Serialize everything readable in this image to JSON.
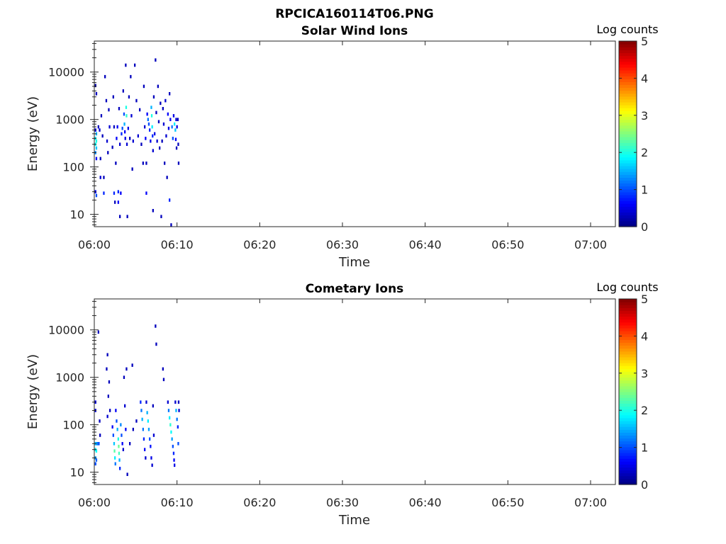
{
  "figure_title": "RPCICA160114T06.PNG",
  "colors": {
    "frame": "#262626",
    "background": "#ffffff"
  },
  "chart_data": [
    {
      "type": "heatmap",
      "title": "Solar Wind Ions",
      "xlabel": "Time",
      "ylabel": "Energy (eV)",
      "y_scale": "log",
      "xlim": [
        "06:00",
        "07:03"
      ],
      "ylim": [
        5.5,
        45000
      ],
      "x_ticks": [
        "06:00",
        "06:10",
        "06:20",
        "06:30",
        "06:40",
        "06:50",
        "07:00"
      ],
      "y_ticks": [
        {
          "value": 10,
          "label": "10"
        },
        {
          "value": 100,
          "label": "100"
        },
        {
          "value": 1000,
          "label": "1000"
        },
        {
          "value": 10000,
          "label": "10000"
        }
      ],
      "colorbar": {
        "label": "Log counts",
        "range": [
          0,
          5
        ],
        "ticks": [
          "0",
          "1",
          "2",
          "3",
          "4",
          "5"
        ],
        "colormap": "jet"
      },
      "cells": [
        {
          "t": 0.05,
          "e": 600,
          "v": 0.6
        },
        {
          "t": 0.05,
          "e": 400,
          "v": 1.8
        },
        {
          "t": 0.05,
          "e": 300,
          "v": 1.9
        },
        {
          "t": 0.05,
          "e": 200,
          "v": 1.3
        },
        {
          "t": 0.15,
          "e": 500,
          "v": 1.5
        },
        {
          "t": 0.15,
          "e": 350,
          "v": 2.0
        },
        {
          "t": 0.15,
          "e": 250,
          "v": 1.6
        },
        {
          "t": 0.15,
          "e": 150,
          "v": 0.6
        },
        {
          "t": 0.05,
          "e": 30,
          "v": 0.6
        },
        {
          "t": 0.15,
          "e": 25,
          "v": 1.0
        },
        {
          "t": 0.15,
          "e": 3500,
          "v": 0.3
        },
        {
          "t": 0.05,
          "e": 5200,
          "v": 0.2
        },
        {
          "t": 0.4,
          "e": 700,
          "v": 0.3
        },
        {
          "t": 0.55,
          "e": 600,
          "v": 0.4
        },
        {
          "t": 0.65,
          "e": 150,
          "v": 0.3
        },
        {
          "t": 0.65,
          "e": 60,
          "v": 0.4
        },
        {
          "t": 0.75,
          "e": 1200,
          "v": 0.3
        },
        {
          "t": 0.9,
          "e": 450,
          "v": 0.3
        },
        {
          "t": 1.05,
          "e": 60,
          "v": 0.3
        },
        {
          "t": 1.05,
          "e": 28,
          "v": 0.8
        },
        {
          "t": 1.2,
          "e": 8000,
          "v": 0.3
        },
        {
          "t": 1.35,
          "e": 2500,
          "v": 0.3
        },
        {
          "t": 1.45,
          "e": 350,
          "v": 0.4
        },
        {
          "t": 1.55,
          "e": 200,
          "v": 0.3
        },
        {
          "t": 1.65,
          "e": 1600,
          "v": 0.3
        },
        {
          "t": 1.75,
          "e": 700,
          "v": 0.4
        },
        {
          "t": 2.1,
          "e": 260,
          "v": 0.3
        },
        {
          "t": 2.2,
          "e": 3000,
          "v": 0.3
        },
        {
          "t": 2.3,
          "e": 700,
          "v": 0.3
        },
        {
          "t": 2.3,
          "e": 28,
          "v": 0.8
        },
        {
          "t": 2.4,
          "e": 18,
          "v": 0.3
        },
        {
          "t": 2.5,
          "e": 120,
          "v": 0.3
        },
        {
          "t": 2.6,
          "e": 400,
          "v": 0.6
        },
        {
          "t": 2.7,
          "e": 700,
          "v": 0.6
        },
        {
          "t": 2.8,
          "e": 30,
          "v": 0.8
        },
        {
          "t": 2.8,
          "e": 18,
          "v": 0.6
        },
        {
          "t": 2.9,
          "e": 1700,
          "v": 0.3
        },
        {
          "t": 3.0,
          "e": 300,
          "v": 0.4
        },
        {
          "t": 3.0,
          "e": 9,
          "v": 0.3
        },
        {
          "t": 3.1,
          "e": 28,
          "v": 0.6
        },
        {
          "t": 3.2,
          "e": 500,
          "v": 0.8
        },
        {
          "t": 3.3,
          "e": 650,
          "v": 1.0
        },
        {
          "t": 3.4,
          "e": 4000,
          "v": 0.3
        },
        {
          "t": 3.5,
          "e": 1300,
          "v": 1.0
        },
        {
          "t": 3.55,
          "e": 800,
          "v": 1.5
        },
        {
          "t": 3.6,
          "e": 550,
          "v": 0.6
        },
        {
          "t": 3.65,
          "e": 400,
          "v": 0.5
        },
        {
          "t": 3.7,
          "e": 14000,
          "v": 0.3
        },
        {
          "t": 3.75,
          "e": 1800,
          "v": 2.0
        },
        {
          "t": 3.8,
          "e": 1200,
          "v": 2.1
        },
        {
          "t": 3.85,
          "e": 300,
          "v": 0.4
        },
        {
          "t": 3.9,
          "e": 9,
          "v": 0.3
        },
        {
          "t": 4.0,
          "e": 650,
          "v": 0.5
        },
        {
          "t": 4.1,
          "e": 3000,
          "v": 0.3
        },
        {
          "t": 4.2,
          "e": 400,
          "v": 0.3
        },
        {
          "t": 4.3,
          "e": 8000,
          "v": 0.3
        },
        {
          "t": 4.4,
          "e": 1200,
          "v": 0.4
        },
        {
          "t": 4.5,
          "e": 90,
          "v": 0.3
        },
        {
          "t": 4.6,
          "e": 350,
          "v": 0.4
        },
        {
          "t": 4.8,
          "e": 14000,
          "v": 0.3
        },
        {
          "t": 5.0,
          "e": 2500,
          "v": 0.3
        },
        {
          "t": 5.2,
          "e": 450,
          "v": 0.4
        },
        {
          "t": 5.4,
          "e": 1600,
          "v": 0.3
        },
        {
          "t": 5.6,
          "e": 300,
          "v": 0.3
        },
        {
          "t": 5.8,
          "e": 120,
          "v": 0.3
        },
        {
          "t": 5.9,
          "e": 5000,
          "v": 0.3
        },
        {
          "t": 6.0,
          "e": 700,
          "v": 0.4
        },
        {
          "t": 6.1,
          "e": 400,
          "v": 0.6
        },
        {
          "t": 6.2,
          "e": 120,
          "v": 0.3
        },
        {
          "t": 6.2,
          "e": 28,
          "v": 0.6
        },
        {
          "t": 6.3,
          "e": 1300,
          "v": 0.6
        },
        {
          "t": 6.4,
          "e": 1000,
          "v": 1.2
        },
        {
          "t": 6.5,
          "e": 800,
          "v": 1.0
        },
        {
          "t": 6.6,
          "e": 600,
          "v": 0.8
        },
        {
          "t": 6.7,
          "e": 350,
          "v": 0.5
        },
        {
          "t": 6.8,
          "e": 1800,
          "v": 1.5
        },
        {
          "t": 6.85,
          "e": 1200,
          "v": 2.0
        },
        {
          "t": 6.9,
          "e": 700,
          "v": 1.8
        },
        {
          "t": 6.95,
          "e": 450,
          "v": 0.8
        },
        {
          "t": 7.0,
          "e": 220,
          "v": 0.4
        },
        {
          "t": 7.0,
          "e": 12,
          "v": 0.3
        },
        {
          "t": 7.1,
          "e": 3000,
          "v": 0.3
        },
        {
          "t": 7.2,
          "e": 500,
          "v": 0.5
        },
        {
          "t": 7.3,
          "e": 18000,
          "v": 0.3
        },
        {
          "t": 7.4,
          "e": 1400,
          "v": 0.3
        },
        {
          "t": 7.5,
          "e": 350,
          "v": 0.4
        },
        {
          "t": 7.6,
          "e": 5000,
          "v": 0.3
        },
        {
          "t": 7.7,
          "e": 900,
          "v": 0.3
        },
        {
          "t": 7.8,
          "e": 250,
          "v": 0.3
        },
        {
          "t": 7.9,
          "e": 2200,
          "v": 0.3
        },
        {
          "t": 8.0,
          "e": 9,
          "v": 0.3
        },
        {
          "t": 8.1,
          "e": 350,
          "v": 0.3
        },
        {
          "t": 8.2,
          "e": 1700,
          "v": 0.3
        },
        {
          "t": 8.3,
          "e": 800,
          "v": 0.4
        },
        {
          "t": 8.4,
          "e": 120,
          "v": 0.3
        },
        {
          "t": 8.5,
          "e": 2500,
          "v": 0.4
        },
        {
          "t": 8.6,
          "e": 450,
          "v": 0.4
        },
        {
          "t": 8.7,
          "e": 60,
          "v": 0.3
        },
        {
          "t": 8.8,
          "e": 1300,
          "v": 0.6
        },
        {
          "t": 8.9,
          "e": 650,
          "v": 0.5
        },
        {
          "t": 9.0,
          "e": 3500,
          "v": 0.3
        },
        {
          "t": 9.0,
          "e": 20,
          "v": 0.8
        },
        {
          "t": 9.1,
          "e": 1000,
          "v": 0.6
        },
        {
          "t": 9.2,
          "e": 6,
          "v": 0.3
        },
        {
          "t": 9.3,
          "e": 700,
          "v": 1.2
        },
        {
          "t": 9.4,
          "e": 400,
          "v": 1.0
        },
        {
          "t": 9.5,
          "e": 1200,
          "v": 0.5
        },
        {
          "t": 9.6,
          "e": 800,
          "v": 1.8
        },
        {
          "t": 9.7,
          "e": 600,
          "v": 1.6
        },
        {
          "t": 9.75,
          "e": 380,
          "v": 0.6
        },
        {
          "t": 9.8,
          "e": 1000,
          "v": 0.4
        },
        {
          "t": 9.85,
          "e": 250,
          "v": 0.3
        },
        {
          "t": 9.9,
          "e": 700,
          "v": 0.5
        },
        {
          "t": 10.0,
          "e": 1000,
          "v": 0.3
        },
        {
          "t": 10.05,
          "e": 300,
          "v": 0.3
        },
        {
          "t": 10.1,
          "e": 120,
          "v": 0.3
        }
      ]
    },
    {
      "type": "heatmap",
      "title": "Cometary Ions",
      "xlabel": "Time",
      "ylabel": "Energy (eV)",
      "y_scale": "log",
      "xlim": [
        "06:00",
        "07:03"
      ],
      "ylim": [
        5.5,
        45000
      ],
      "x_ticks": [
        "06:00",
        "06:10",
        "06:20",
        "06:30",
        "06:40",
        "06:50",
        "07:00"
      ],
      "y_ticks": [
        {
          "value": 10,
          "label": "10"
        },
        {
          "value": 100,
          "label": "100"
        },
        {
          "value": 1000,
          "label": "1000"
        },
        {
          "value": 10000,
          "label": "10000"
        }
      ],
      "colorbar": {
        "label": "Log counts",
        "range": [
          0,
          5
        ],
        "ticks": [
          "0",
          "1",
          "2",
          "3",
          "4",
          "5"
        ],
        "colormap": "jet"
      },
      "cells": [
        {
          "t": 0.05,
          "e": 300,
          "v": 0.6
        },
        {
          "t": 0.05,
          "e": 200,
          "v": 0.4
        },
        {
          "t": 0.05,
          "e": 40,
          "v": 1.5
        },
        {
          "t": 0.05,
          "e": 30,
          "v": 1.8
        },
        {
          "t": 0.05,
          "e": 20,
          "v": 1.4
        },
        {
          "t": 0.05,
          "e": 15,
          "v": 1.0
        },
        {
          "t": 0.15,
          "e": 40,
          "v": 1.6
        },
        {
          "t": 0.15,
          "e": 28,
          "v": 1.9
        },
        {
          "t": 0.15,
          "e": 18,
          "v": 1.1
        },
        {
          "t": 0.25,
          "e": 40,
          "v": 1.3
        },
        {
          "t": 0.35,
          "e": 40,
          "v": 1.2
        },
        {
          "t": 0.45,
          "e": 40,
          "v": 1.0
        },
        {
          "t": 0.55,
          "e": 120,
          "v": 0.3
        },
        {
          "t": 0.4,
          "e": 9000,
          "v": 0.3
        },
        {
          "t": 0.6,
          "e": 60,
          "v": 0.3
        },
        {
          "t": 1.4,
          "e": 1500,
          "v": 0.3
        },
        {
          "t": 1.5,
          "e": 3000,
          "v": 0.3
        },
        {
          "t": 1.6,
          "e": 400,
          "v": 0.3
        },
        {
          "t": 1.7,
          "e": 800,
          "v": 0.3
        },
        {
          "t": 1.8,
          "e": 200,
          "v": 0.3
        },
        {
          "t": 1.5,
          "e": 150,
          "v": 0.4
        },
        {
          "t": 2.1,
          "e": 90,
          "v": 0.6
        },
        {
          "t": 2.2,
          "e": 60,
          "v": 1.0
        },
        {
          "t": 2.3,
          "e": 40,
          "v": 1.6
        },
        {
          "t": 2.35,
          "e": 28,
          "v": 2.3
        },
        {
          "t": 2.4,
          "e": 20,
          "v": 1.8
        },
        {
          "t": 2.45,
          "e": 15,
          "v": 1.2
        },
        {
          "t": 2.5,
          "e": 200,
          "v": 0.6
        },
        {
          "t": 2.6,
          "e": 120,
          "v": 1.0
        },
        {
          "t": 2.7,
          "e": 80,
          "v": 1.5
        },
        {
          "t": 2.8,
          "e": 50,
          "v": 2.0
        },
        {
          "t": 2.85,
          "e": 35,
          "v": 2.4
        },
        {
          "t": 2.9,
          "e": 25,
          "v": 2.2
        },
        {
          "t": 2.95,
          "e": 18,
          "v": 1.5
        },
        {
          "t": 3.0,
          "e": 12,
          "v": 0.8
        },
        {
          "t": 3.1,
          "e": 100,
          "v": 1.3
        },
        {
          "t": 3.2,
          "e": 60,
          "v": 1.0
        },
        {
          "t": 3.3,
          "e": 40,
          "v": 0.6
        },
        {
          "t": 3.4,
          "e": 30,
          "v": 0.4
        },
        {
          "t": 3.5,
          "e": 1000,
          "v": 0.3
        },
        {
          "t": 3.6,
          "e": 250,
          "v": 0.4
        },
        {
          "t": 3.7,
          "e": 80,
          "v": 0.6
        },
        {
          "t": 3.8,
          "e": 1500,
          "v": 0.3
        },
        {
          "t": 3.9,
          "e": 9,
          "v": 0.3
        },
        {
          "t": 4.2,
          "e": 40,
          "v": 0.3
        },
        {
          "t": 4.5,
          "e": 1800,
          "v": 0.3
        },
        {
          "t": 4.6,
          "e": 80,
          "v": 0.3
        },
        {
          "t": 5.0,
          "e": 120,
          "v": 0.3
        },
        {
          "t": 5.5,
          "e": 300,
          "v": 0.8
        },
        {
          "t": 5.6,
          "e": 200,
          "v": 1.2
        },
        {
          "t": 5.7,
          "e": 130,
          "v": 1.5
        },
        {
          "t": 5.8,
          "e": 80,
          "v": 1.2
        },
        {
          "t": 5.9,
          "e": 50,
          "v": 0.8
        },
        {
          "t": 6.0,
          "e": 30,
          "v": 0.6
        },
        {
          "t": 6.1,
          "e": 20,
          "v": 0.4
        },
        {
          "t": 6.2,
          "e": 300,
          "v": 0.4
        },
        {
          "t": 6.3,
          "e": 180,
          "v": 1.5
        },
        {
          "t": 6.4,
          "e": 120,
          "v": 1.8
        },
        {
          "t": 6.5,
          "e": 80,
          "v": 1.4
        },
        {
          "t": 6.6,
          "e": 50,
          "v": 1.0
        },
        {
          "t": 6.7,
          "e": 35,
          "v": 0.7
        },
        {
          "t": 6.8,
          "e": 20,
          "v": 0.5
        },
        {
          "t": 6.9,
          "e": 14,
          "v": 0.4
        },
        {
          "t": 7.0,
          "e": 250,
          "v": 0.3
        },
        {
          "t": 7.1,
          "e": 60,
          "v": 0.4
        },
        {
          "t": 7.3,
          "e": 12000,
          "v": 0.3
        },
        {
          "t": 7.4,
          "e": 5000,
          "v": 0.3
        },
        {
          "t": 8.2,
          "e": 1500,
          "v": 0.3
        },
        {
          "t": 8.3,
          "e": 900,
          "v": 0.3
        },
        {
          "t": 8.8,
          "e": 300,
          "v": 0.4
        },
        {
          "t": 8.9,
          "e": 200,
          "v": 1.2
        },
        {
          "t": 9.0,
          "e": 140,
          "v": 1.8
        },
        {
          "t": 9.1,
          "e": 100,
          "v": 2.1
        },
        {
          "t": 9.2,
          "e": 70,
          "v": 1.9
        },
        {
          "t": 9.3,
          "e": 50,
          "v": 1.4
        },
        {
          "t": 9.4,
          "e": 35,
          "v": 1.0
        },
        {
          "t": 9.5,
          "e": 25,
          "v": 0.8
        },
        {
          "t": 9.55,
          "e": 18,
          "v": 0.6
        },
        {
          "t": 9.6,
          "e": 14,
          "v": 0.5
        },
        {
          "t": 9.7,
          "e": 300,
          "v": 0.4
        },
        {
          "t": 9.8,
          "e": 200,
          "v": 1.5
        },
        {
          "t": 9.9,
          "e": 130,
          "v": 1.2
        },
        {
          "t": 10.0,
          "e": 90,
          "v": 0.8
        },
        {
          "t": 10.05,
          "e": 40,
          "v": 1.0
        },
        {
          "t": 10.1,
          "e": 300,
          "v": 0.3
        },
        {
          "t": 10.15,
          "e": 200,
          "v": 0.4
        }
      ]
    }
  ]
}
